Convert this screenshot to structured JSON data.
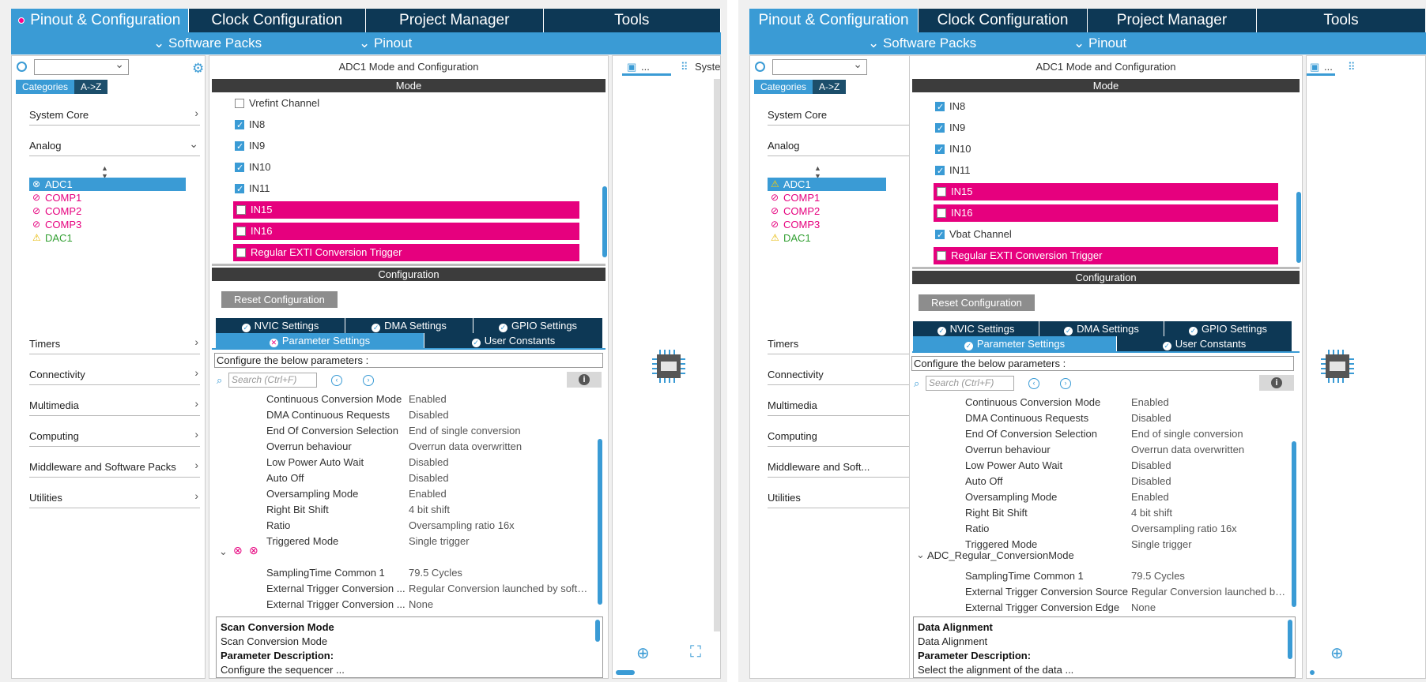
{
  "tabs": [
    "Pinout & Configuration",
    "Clock Configuration",
    "Project Manager",
    "Tools"
  ],
  "subbar": {
    "software_packs": "⌄ Software Packs",
    "pinout": "⌄ Pinout"
  },
  "left": {
    "categories_tab": "Categories",
    "az_tab": "A->Z",
    "categories": [
      "System Core",
      "Analog",
      "Timers",
      "Connectivity",
      "Multimedia",
      "Computing",
      "Middleware and Software Packs",
      "Utilities"
    ],
    "categories_r": [
      "System Core",
      "Analog",
      "Timers",
      "Connectivity",
      "Multimedia",
      "Computing",
      "Middleware and Soft...",
      "Utilities"
    ],
    "analog_items": [
      "ADC1",
      "COMP1",
      "COMP2",
      "COMP3",
      "DAC1"
    ]
  },
  "center": {
    "title": "ADC1 Mode and Configuration",
    "mode_header": "Mode",
    "config_header": "Configuration",
    "reset": "Reset Configuration",
    "nvic": "NVIC Settings",
    "dma": "DMA Settings",
    "gpio": "GPIO Settings",
    "param": "Parameter Settings",
    "user": "User Constants",
    "configure": "Configure the below parameters :",
    "search_ph": "Search (Ctrl+F)",
    "mode_left": [
      "Vrefint Channel",
      "IN8",
      "IN9",
      "IN10",
      "IN11",
      "IN15",
      "IN16",
      "Regular EXTI Conversion Trigger"
    ],
    "mode_right": [
      "IN8",
      "IN9",
      "IN10",
      "IN11",
      "IN15",
      "IN16",
      "Vbat Channel",
      "Regular EXTI Conversion Trigger"
    ],
    "params": [
      [
        "Continuous Conversion Mode",
        "Enabled"
      ],
      [
        "DMA Continuous Requests",
        "Disabled"
      ],
      [
        "End Of Conversion Selection",
        "End of single conversion"
      ],
      [
        "Overrun behaviour",
        "Overrun data overwritten"
      ],
      [
        "Low Power Auto Wait",
        "Disabled"
      ],
      [
        "Auto Off",
        "Disabled"
      ],
      [
        "Oversampling Mode",
        "Enabled"
      ],
      [
        "Right Bit Shift",
        "4 bit shift"
      ],
      [
        "Ratio",
        "Oversampling ratio 16x"
      ],
      [
        "Triggered Mode",
        "Single trigger"
      ]
    ],
    "params2_left": [
      [
        "SamplingTime Common 1",
        "79.5 Cycles"
      ],
      [
        "External Trigger Conversion ...",
        "Regular Conversion launched by softw..."
      ],
      [
        "External Trigger Conversion ...",
        "None"
      ]
    ],
    "group_right": "ADC_Regular_ConversionMode",
    "params2_right": [
      [
        "SamplingTime Common 1",
        "79.5 Cycles"
      ],
      [
        "External Trigger Conversion Source",
        "Regular Conversion launched by software"
      ],
      [
        "External Trigger Conversion Edge",
        "None"
      ]
    ],
    "desc_left": {
      "t1": "Scan Conversion Mode",
      "t2": "Scan Conversion Mode",
      "t3": "Parameter Description:",
      "t4": "Configure the sequencer ..."
    },
    "desc_right": {
      "t1": "Data Alignment",
      "t2": "Data Alignment",
      "t3": "Parameter Description:",
      "t4": "Select the alignment of the data ..."
    }
  },
  "rightpane": {
    "tab1": "...",
    "tab2": "Syste"
  }
}
